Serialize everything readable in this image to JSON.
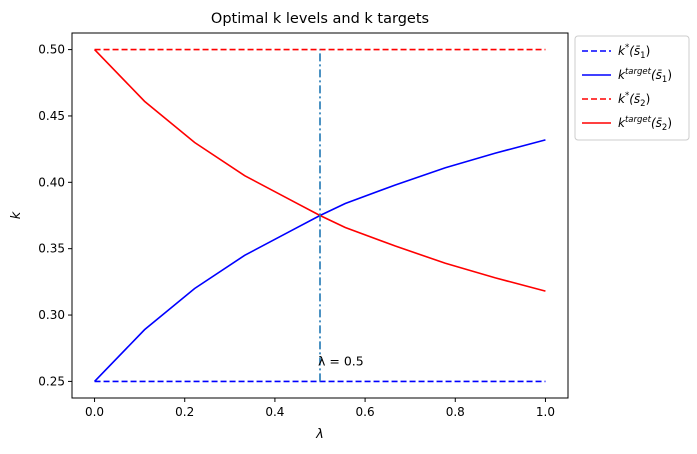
{
  "chart_data": {
    "type": "line",
    "title": "Optimal k levels and k targets",
    "xlabel": "λ",
    "ylabel": "k",
    "xlim": [
      -0.05,
      1.05
    ],
    "ylim": [
      0.2375,
      0.5125
    ],
    "xticks": [
      0.0,
      0.2,
      0.4,
      0.6,
      0.8,
      1.0
    ],
    "xtick_labels": [
      "0.0",
      "0.2",
      "0.4",
      "0.6",
      "0.8",
      "1.0"
    ],
    "yticks": [
      0.25,
      0.3,
      0.35,
      0.4,
      0.45,
      0.5
    ],
    "ytick_labels": [
      "0.25",
      "0.30",
      "0.35",
      "0.40",
      "0.45",
      "0.50"
    ],
    "grid": false,
    "legend_position": "outside-top-right",
    "x": [
      0.0,
      0.111,
      0.222,
      0.333,
      0.444,
      0.5,
      0.556,
      0.667,
      0.778,
      0.889,
      1.0
    ],
    "series": [
      {
        "label_base": "k",
        "label_sup": "*",
        "label_arg": "(s̄",
        "label_sub": "1",
        "label_close": ")",
        "color": "#0000ff",
        "style": "dashed",
        "values": [
          0.25,
          0.25,
          0.25,
          0.25,
          0.25,
          0.25,
          0.25,
          0.25,
          0.25,
          0.25,
          0.25
        ]
      },
      {
        "label_base": "k",
        "label_sup": "target",
        "label_arg": "(s̄",
        "label_sub": "1",
        "label_close": ")",
        "color": "#0000ff",
        "style": "solid",
        "values": [
          0.25,
          0.289,
          0.32,
          0.345,
          0.365,
          0.375,
          0.384,
          0.398,
          0.411,
          0.422,
          0.432
        ]
      },
      {
        "label_base": "k",
        "label_sup": "*",
        "label_arg": "(s̄",
        "label_sub": "2",
        "label_close": ")",
        "color": "#ff0000",
        "style": "dashed",
        "values": [
          0.5,
          0.5,
          0.5,
          0.5,
          0.5,
          0.5,
          0.5,
          0.5,
          0.5,
          0.5,
          0.5
        ]
      },
      {
        "label_base": "k",
        "label_sup": "target",
        "label_arg": "(s̄",
        "label_sub": "2",
        "label_close": ")",
        "color": "#ff0000",
        "style": "solid",
        "values": [
          0.5,
          0.461,
          0.43,
          0.405,
          0.385,
          0.375,
          0.366,
          0.352,
          0.339,
          0.328,
          0.318
        ]
      }
    ],
    "vline": {
      "x": 0.5,
      "ymin": 0.25,
      "ymax": 0.5,
      "color": "#1f77b4",
      "style": "dashdot"
    },
    "annotation": {
      "text": "λ = 0.5",
      "x": 0.5,
      "y": 0.262
    }
  }
}
